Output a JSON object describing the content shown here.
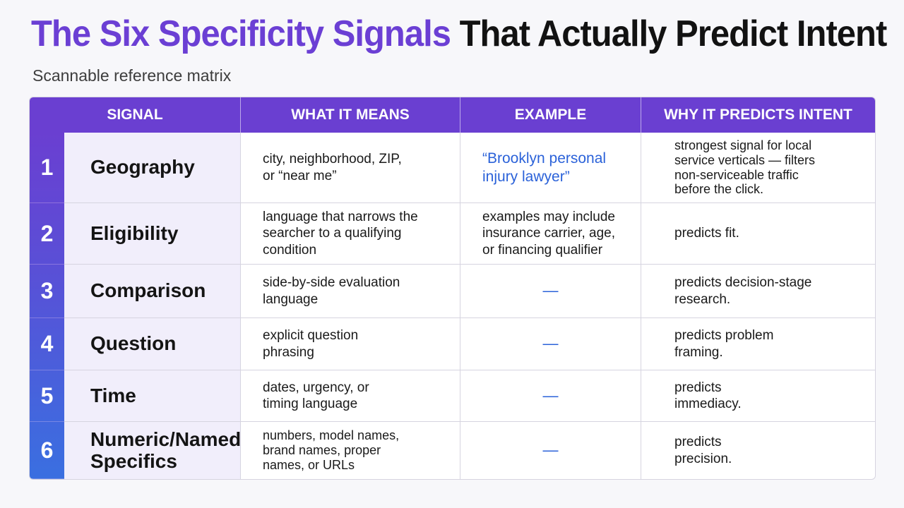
{
  "title": {
    "accent": "The Six Specificity Signals",
    "rest": "That Actually Predict Intent"
  },
  "subtitle": "Scannable reference matrix",
  "colors": {
    "accent": "#6b3fd4",
    "header_bg": "#6a3fd1",
    "number_gradient_top": "#6a3fd1",
    "number_gradient_bottom": "#3a6fe0",
    "example_text": "#2b62d9",
    "signal_bg": "#f1eefb"
  },
  "table": {
    "headers": {
      "signal": "SIGNAL",
      "meaning": "WHAT IT MEANS",
      "example": "EXAMPLE",
      "why": "WHY IT PREDICTS INTENT"
    },
    "rows": [
      {
        "num": "1",
        "signal": "Geography",
        "meaning": "city, neighborhood, ZIP,\nor “near me”",
        "example": "“Brooklyn personal\ninjury lawyer”",
        "why": "strongest signal for local\nservice verticals — filters\nnon-serviceable traffic\nbefore the click."
      },
      {
        "num": "2",
        "signal": "Eligibility",
        "meaning": "language that narrows the\nsearcher to a qualifying\ncondition",
        "example": "examples may include\ninsurance carrier, age,\nor financing qualifier",
        "why": "predicts fit."
      },
      {
        "num": "3",
        "signal": "Comparison",
        "meaning": "side-by-side evaluation\nlanguage",
        "example": "—",
        "why": "predicts decision-stage\nresearch."
      },
      {
        "num": "4",
        "signal": "Question",
        "meaning": "explicit question\nphrasing",
        "example": "—",
        "why": "predicts problem\nframing."
      },
      {
        "num": "5",
        "signal": "Time",
        "meaning": "dates, urgency, or\ntiming language",
        "example": "—",
        "why": "predicts\nimmediacy."
      },
      {
        "num": "6",
        "signal": "Numeric/Named\nSpecifics",
        "meaning": "numbers, model names,\nbrand names, proper\nnames, or URLs",
        "example": "—",
        "why": "predicts\nprecision."
      }
    ]
  }
}
